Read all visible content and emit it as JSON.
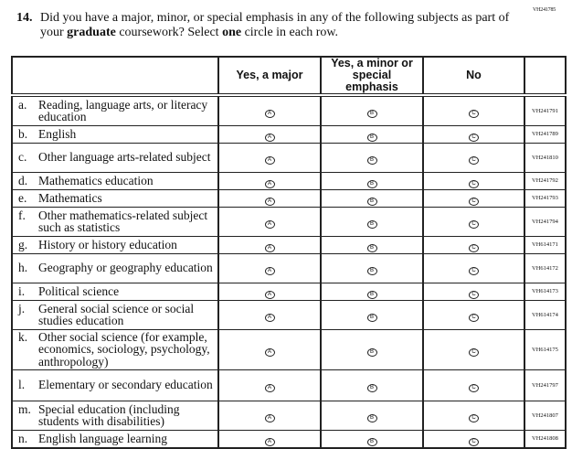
{
  "question": {
    "code": "VH241785",
    "number": "14.",
    "text_1": "Did you have a major, minor, or special emphasis in any of the following subjects as part of your ",
    "bold_1": "graduate",
    "text_2": " coursework? Select ",
    "bold_2": "one",
    "text_3": " circle in each row."
  },
  "columns": [
    "",
    "Yes, a major",
    "Yes, a minor or special emphasis",
    "No",
    ""
  ],
  "bubble_letters": [
    "A",
    "B",
    "C"
  ],
  "rows": [
    {
      "letter": "a.",
      "label": "Reading, language arts, or literacy education",
      "code": "VH241791"
    },
    {
      "letter": "b.",
      "label": "English",
      "code": "VH241789"
    },
    {
      "letter": "c.",
      "label": "Other language arts-related subject",
      "code": "VH241810"
    },
    {
      "letter": "d.",
      "label": "Mathematics education",
      "code": "VH241792"
    },
    {
      "letter": "e.",
      "label": "Mathematics",
      "code": "VH241793"
    },
    {
      "letter": "f.",
      "label": "Other mathematics-related subject such as statistics",
      "code": "VH241794"
    },
    {
      "letter": "g.",
      "label": "History or history education",
      "code": "VH614171"
    },
    {
      "letter": "h.",
      "label": "Geography or geography education",
      "code": "VH614172"
    },
    {
      "letter": "i.",
      "label": "Political science",
      "code": "VH614173"
    },
    {
      "letter": "j.",
      "label": "General social science or social studies education",
      "code": "VH614174"
    },
    {
      "letter": "k.",
      "label": "Other social science (for example, economics, sociology, psychology, anthropology)",
      "code": "VH614175"
    },
    {
      "letter": "l.",
      "label": "Elementary or secondary education",
      "code": "VH241797"
    },
    {
      "letter": "m.",
      "label": "Special education (including students with disabilities)",
      "code": "VH241807"
    },
    {
      "letter": "n.",
      "label": "English language learning",
      "code": "VH241808"
    }
  ]
}
